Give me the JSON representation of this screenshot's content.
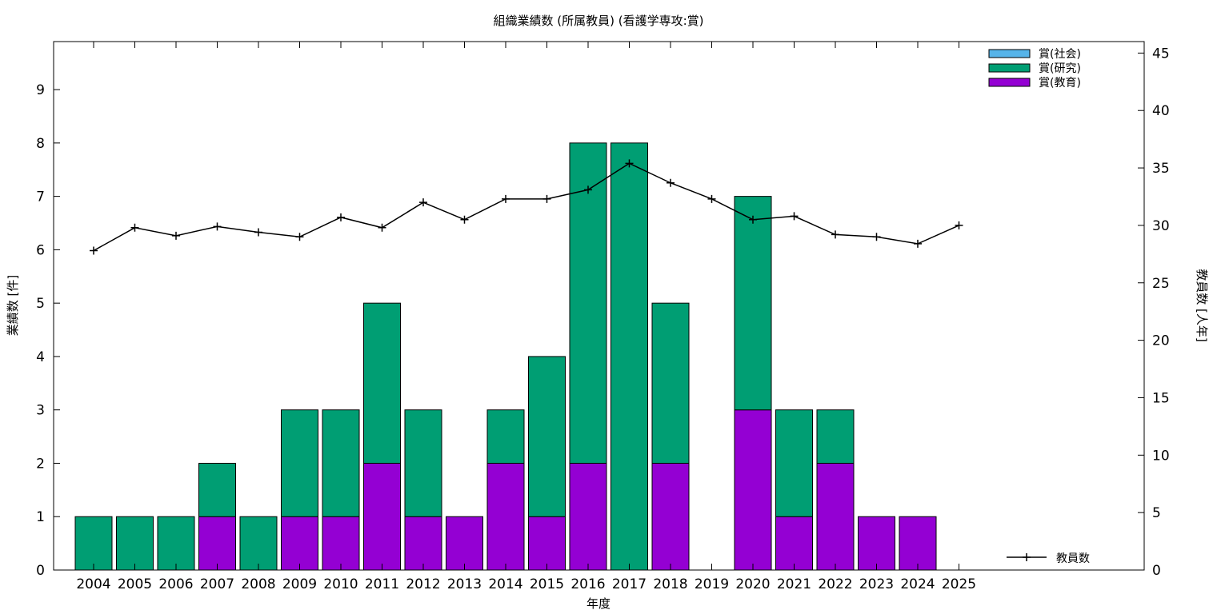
{
  "chart_data": {
    "type": "bar",
    "stacked": true,
    "title": "組織業績数 (所属教員) (看護学専攻:賞)",
    "xlabel": "年度",
    "ylabel": "業績数 [件]",
    "y2label": "教員数 [人年]",
    "categories": [
      "2004",
      "2005",
      "2006",
      "2007",
      "2008",
      "2009",
      "2010",
      "2011",
      "2012",
      "2013",
      "2014",
      "2015",
      "2016",
      "2017",
      "2018",
      "2019",
      "2020",
      "2021",
      "2022",
      "2023",
      "2024",
      "2025"
    ],
    "ylim": [
      0,
      9.9
    ],
    "yticks": [
      0,
      1,
      2,
      3,
      4,
      5,
      6,
      7,
      8,
      9
    ],
    "y2lim": [
      0,
      46
    ],
    "y2ticks": [
      0,
      5,
      10,
      15,
      20,
      25,
      30,
      35,
      40,
      45
    ],
    "grid": false,
    "legend_position": "top-right",
    "series": [
      {
        "name": "賞(社会)",
        "color": "#56b4e9",
        "values": [
          0,
          0,
          0,
          0,
          0,
          0,
          0,
          0,
          0,
          0,
          0,
          0,
          0,
          0,
          0,
          0,
          0,
          0,
          0,
          0,
          0,
          0
        ]
      },
      {
        "name": "賞(研究)",
        "color": "#009e73",
        "values": [
          1,
          1,
          1,
          1,
          1,
          2,
          2,
          3,
          2,
          0,
          1,
          3,
          6,
          8,
          3,
          0,
          4,
          2,
          1,
          0,
          0,
          0
        ]
      },
      {
        "name": "賞(教育)",
        "color": "#9400d3",
        "values": [
          0,
          0,
          0,
          1,
          0,
          1,
          1,
          2,
          1,
          1,
          2,
          1,
          2,
          0,
          2,
          0,
          3,
          1,
          2,
          1,
          1,
          0
        ]
      }
    ],
    "line_series": {
      "name": "教員数",
      "color": "#000000",
      "axis": "y2",
      "legend_position": "bottom-right",
      "values": [
        27.8,
        29.8,
        29.1,
        29.9,
        29.4,
        29.0,
        30.7,
        29.8,
        32.0,
        30.5,
        32.3,
        32.3,
        33.1,
        35.4,
        33.7,
        32.3,
        30.5,
        30.8,
        29.2,
        29.0,
        28.4,
        30.0
      ]
    }
  }
}
